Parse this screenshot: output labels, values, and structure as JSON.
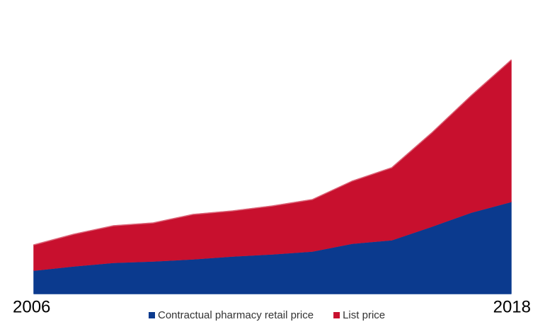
{
  "chart_data": {
    "type": "stacked-area",
    "categories": [
      "2006",
      null,
      null,
      null,
      null,
      null,
      null,
      null,
      null,
      null,
      null,
      null,
      "2018"
    ],
    "series": [
      {
        "name": "Contractual pharmacy retail price",
        "color": "#0b3a8e",
        "values": [
          3.3,
          3.9,
          4.4,
          4.6,
          4.9,
          5.3,
          5.6,
          6.0,
          7.1,
          7.6,
          9.5,
          11.5,
          13.0
        ]
      },
      {
        "name": "List price",
        "color": "#c8102e",
        "values": [
          3.6,
          4.5,
          5.2,
          5.4,
          6.3,
          6.4,
          6.8,
          7.3,
          8.8,
          10.2,
          13.2,
          16.5,
          20.0
        ]
      }
    ],
    "ylim": [
      0,
      33
    ],
    "legend": "bottom"
  }
}
